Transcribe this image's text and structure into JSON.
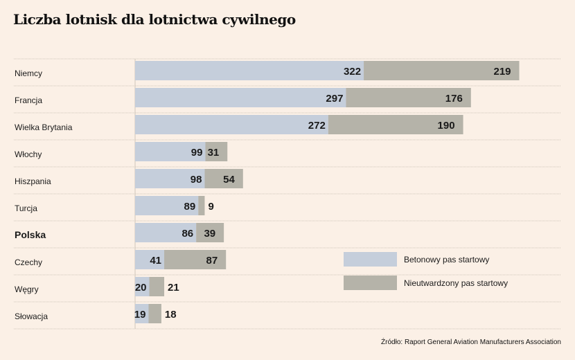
{
  "title": "Liczba lotnisk dla lotnictwa cywilnego",
  "source": "Źródło: Raport General Aviation Manufacturers Association",
  "colors": {
    "background": "#fbf0e6",
    "series1": "#c5cedb",
    "series2": "#b5b3a9",
    "divider": "#cfc6bb"
  },
  "chart_data": {
    "type": "bar",
    "orientation": "horizontal",
    "stacked": true,
    "categories": [
      "Niemcy",
      "Francja",
      "Wielka Brytania",
      "Włochy",
      "Hiszpania",
      "Turcja",
      "Polska",
      "Czechy",
      "Węgry",
      "Słowacja"
    ],
    "highlight_category": "Polska",
    "series": [
      {
        "name": "Betonowy pas startowy",
        "values": [
          322,
          297,
          272,
          99,
          98,
          89,
          86,
          41,
          20,
          19
        ]
      },
      {
        "name": "Nieutwardzony pas startowy",
        "values": [
          219,
          176,
          190,
          31,
          54,
          9,
          39,
          87,
          21,
          18
        ]
      }
    ],
    "legend_position": "bottom-right"
  }
}
